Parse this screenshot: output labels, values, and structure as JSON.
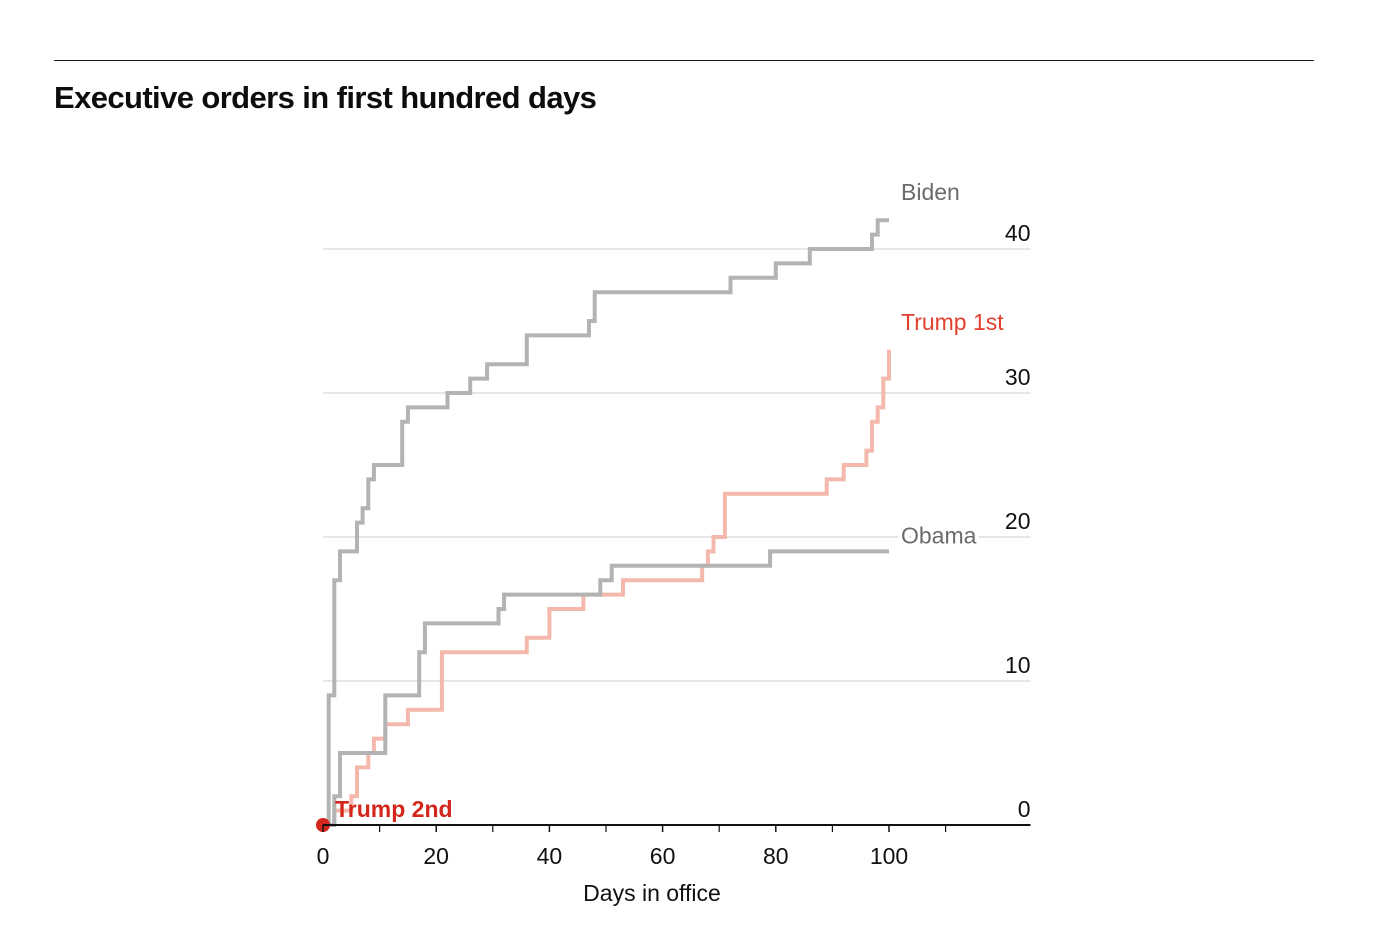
{
  "chart_data": {
    "type": "line",
    "step": true,
    "title": "Executive orders in first hundred days",
    "xlabel": "Days in office",
    "ylabel": "",
    "xlim": [
      0,
      125
    ],
    "ylim": [
      0,
      40
    ],
    "x_ticks": [
      0,
      20,
      40,
      60,
      80,
      100
    ],
    "x_minor_ticks": [
      10,
      30,
      50,
      70,
      90,
      110
    ],
    "y_ticks": [
      0,
      10,
      20,
      30,
      40
    ],
    "grid": "horizontal",
    "y_axis_position": "right",
    "series": [
      {
        "name": "Biden",
        "color": "#b3b3b3",
        "label_color": "#6b6b6b",
        "x": [
          0,
          1,
          2,
          3,
          6,
          6,
          7,
          8,
          9,
          14,
          15,
          22,
          26,
          29,
          36,
          47,
          48,
          72,
          80,
          86,
          97,
          98,
          100
        ],
        "y": [
          0,
          9,
          17,
          19,
          19,
          21,
          22,
          24,
          25,
          28,
          29,
          30,
          31,
          32,
          34,
          35,
          37,
          38,
          39,
          40,
          41,
          42,
          42
        ]
      },
      {
        "name": "Trump 1st",
        "color": "#f4b9ac",
        "label_color": "#e3412f",
        "x": [
          0,
          1,
          2,
          5,
          6,
          8,
          9,
          11,
          15,
          21,
          36,
          40,
          46,
          53,
          67,
          68,
          69,
          71,
          89,
          92,
          96,
          97,
          98,
          99,
          100
        ],
        "y": [
          0,
          0,
          1,
          2,
          4,
          5,
          6,
          7,
          8,
          12,
          13,
          15,
          16,
          17,
          18,
          19,
          20,
          23,
          24,
          25,
          26,
          28,
          29,
          31,
          33
        ]
      },
      {
        "name": "Obama",
        "color": "#b3b3b3",
        "label_color": "#6b6b6b",
        "x": [
          0,
          2,
          3,
          11,
          17,
          18,
          31,
          32,
          49,
          51,
          79,
          100
        ],
        "y": [
          0,
          2,
          5,
          9,
          12,
          14,
          15,
          16,
          17,
          18,
          19,
          19
        ]
      },
      {
        "name": "Trump 2nd",
        "color": "#d4261c",
        "label_color": "#d4261c",
        "x": [
          0
        ],
        "y": [
          0
        ]
      }
    ]
  }
}
